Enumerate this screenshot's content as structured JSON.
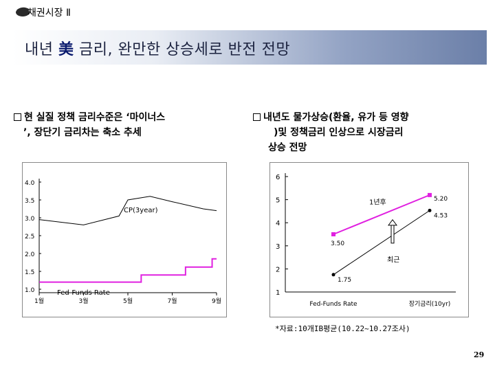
{
  "header": {
    "section": "채권시장 Ⅱ"
  },
  "title": {
    "prefix": "내년 ",
    "highlight": "美",
    "suffix": " 금리, 완만한 상승세로 반전 전망"
  },
  "bullets": {
    "left": {
      "line1": "현 실질 정책 금리수준은 ‘마이너스",
      "line2": "’, 장단기 금리차는 축소 추세"
    },
    "right": {
      "line1": "내년도 물가상승(환율, 유가 등 영향",
      "line2": ")및 정책금리 인상으로 시장금리",
      "line3": "상승 전망"
    }
  },
  "chart_data": [
    {
      "type": "line",
      "y_ticks": [
        "4.0",
        "3.5",
        "3.0",
        "2.5",
        "2.0",
        "1.5",
        "1.0"
      ],
      "x_ticks": [
        "1월",
        "3월",
        "5월",
        "7월",
        "9월"
      ],
      "ylim": [
        1.0,
        4.0
      ],
      "series": [
        {
          "name": "CP(3year)",
          "label": "CP(3year)",
          "x": [
            0,
            1.0,
            1.8,
            2.0,
            2.5,
            3.0,
            3.7,
            4.0
          ],
          "values": [
            2.95,
            2.8,
            3.05,
            3.5,
            3.6,
            3.45,
            3.25,
            3.2
          ]
        },
        {
          "name": "Fed-Funds Rate",
          "label": "Fed-Funds Rate",
          "x": [
            0,
            2.3,
            2.3,
            3.3,
            3.3,
            3.9,
            3.9,
            4.0
          ],
          "values": [
            1.2,
            1.2,
            1.4,
            1.4,
            1.62,
            1.62,
            1.85,
            1.85
          ]
        }
      ]
    },
    {
      "type": "line",
      "y_ticks": [
        "6",
        "5",
        "4",
        "3",
        "2",
        "1"
      ],
      "x_ticks": [
        "Fed-Funds Rate",
        "장기금리(10yr)"
      ],
      "ylim": [
        1,
        6
      ],
      "series": [
        {
          "name": "1년후",
          "label": "1년후",
          "values": [
            3.5,
            5.2
          ],
          "value_labels": [
            "3.50",
            "5.20"
          ]
        },
        {
          "name": "최근",
          "label": "최근",
          "values": [
            1.75,
            4.53
          ],
          "value_labels": [
            "1.75",
            "4.53"
          ]
        }
      ]
    }
  ],
  "footer": {
    "source": "*자료:10개IB평균(10.22~10.27조사)",
    "page": "29"
  },
  "colors": {
    "cp_line": "#000000",
    "ffr_line": "#e020e0",
    "one_year_line": "#e020e0",
    "recent_line": "#000000"
  }
}
